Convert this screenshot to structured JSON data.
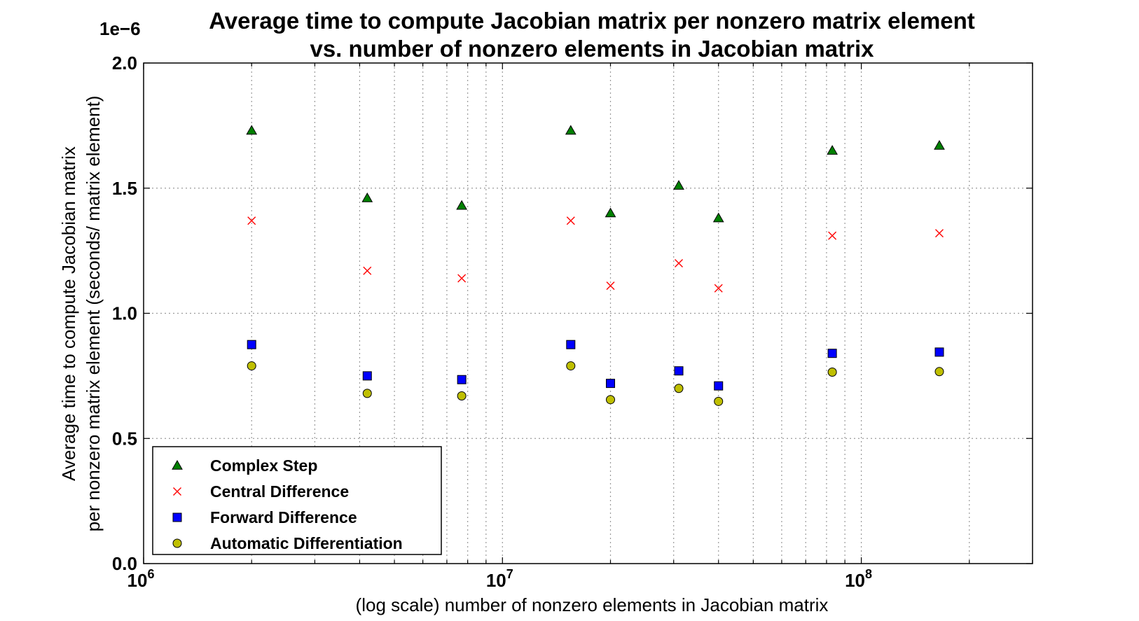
{
  "chart_data": {
    "type": "scatter",
    "title": [
      "Average time to compute Jacobian matrix per nonzero matrix element",
      "vs. number of nonzero elements in Jacobian matrix"
    ],
    "xlabel": "(log scale) number of nonzero elements in Jacobian matrix",
    "ylabel": [
      "Average time to compute Jacobian matrix",
      "per nonzero matrix element (seconds/ matrix element)"
    ],
    "y_offset_text": "1e−6",
    "xscale": "log",
    "xlim": [
      1000000,
      300000000
    ],
    "ylim": [
      0,
      2.0
    ],
    "y_unit_multiplier": 1e-06,
    "grid": true,
    "legend_position": "lower-left",
    "x_ticks": [
      {
        "value": 1000000,
        "base": "10",
        "exp": "6"
      },
      {
        "value": 10000000,
        "base": "10",
        "exp": "7"
      },
      {
        "value": 100000000,
        "base": "10",
        "exp": "8"
      }
    ],
    "y_ticks": [
      {
        "value": 0.0,
        "label": "0.0"
      },
      {
        "value": 0.5,
        "label": "0.5"
      },
      {
        "value": 1.0,
        "label": "1.0"
      },
      {
        "value": 1.5,
        "label": "1.5"
      },
      {
        "value": 2.0,
        "label": "2.0"
      }
    ],
    "x": [
      2000000,
      4200000,
      7700000,
      15500000,
      20000000,
      31000000,
      40000000,
      83000000,
      165000000
    ],
    "series": [
      {
        "name": "Complex Step",
        "marker": "triangle",
        "color": "#008000",
        "values": [
          1.73,
          1.46,
          1.43,
          1.73,
          1.4,
          1.51,
          1.38,
          1.65,
          1.67
        ]
      },
      {
        "name": "Central Difference",
        "marker": "x",
        "color": "#ff0000",
        "values": [
          1.37,
          1.17,
          1.14,
          1.37,
          1.11,
          1.2,
          1.1,
          1.31,
          1.32
        ]
      },
      {
        "name": "Forward Difference",
        "marker": "square",
        "color": "#0000ff",
        "values": [
          0.875,
          0.75,
          0.735,
          0.875,
          0.72,
          0.77,
          0.71,
          0.84,
          0.845
        ]
      },
      {
        "name": "Automatic Differentiation",
        "marker": "circle",
        "color": "#bfbf00",
        "values": [
          0.79,
          0.68,
          0.67,
          0.79,
          0.655,
          0.7,
          0.648,
          0.765,
          0.767
        ]
      }
    ]
  }
}
